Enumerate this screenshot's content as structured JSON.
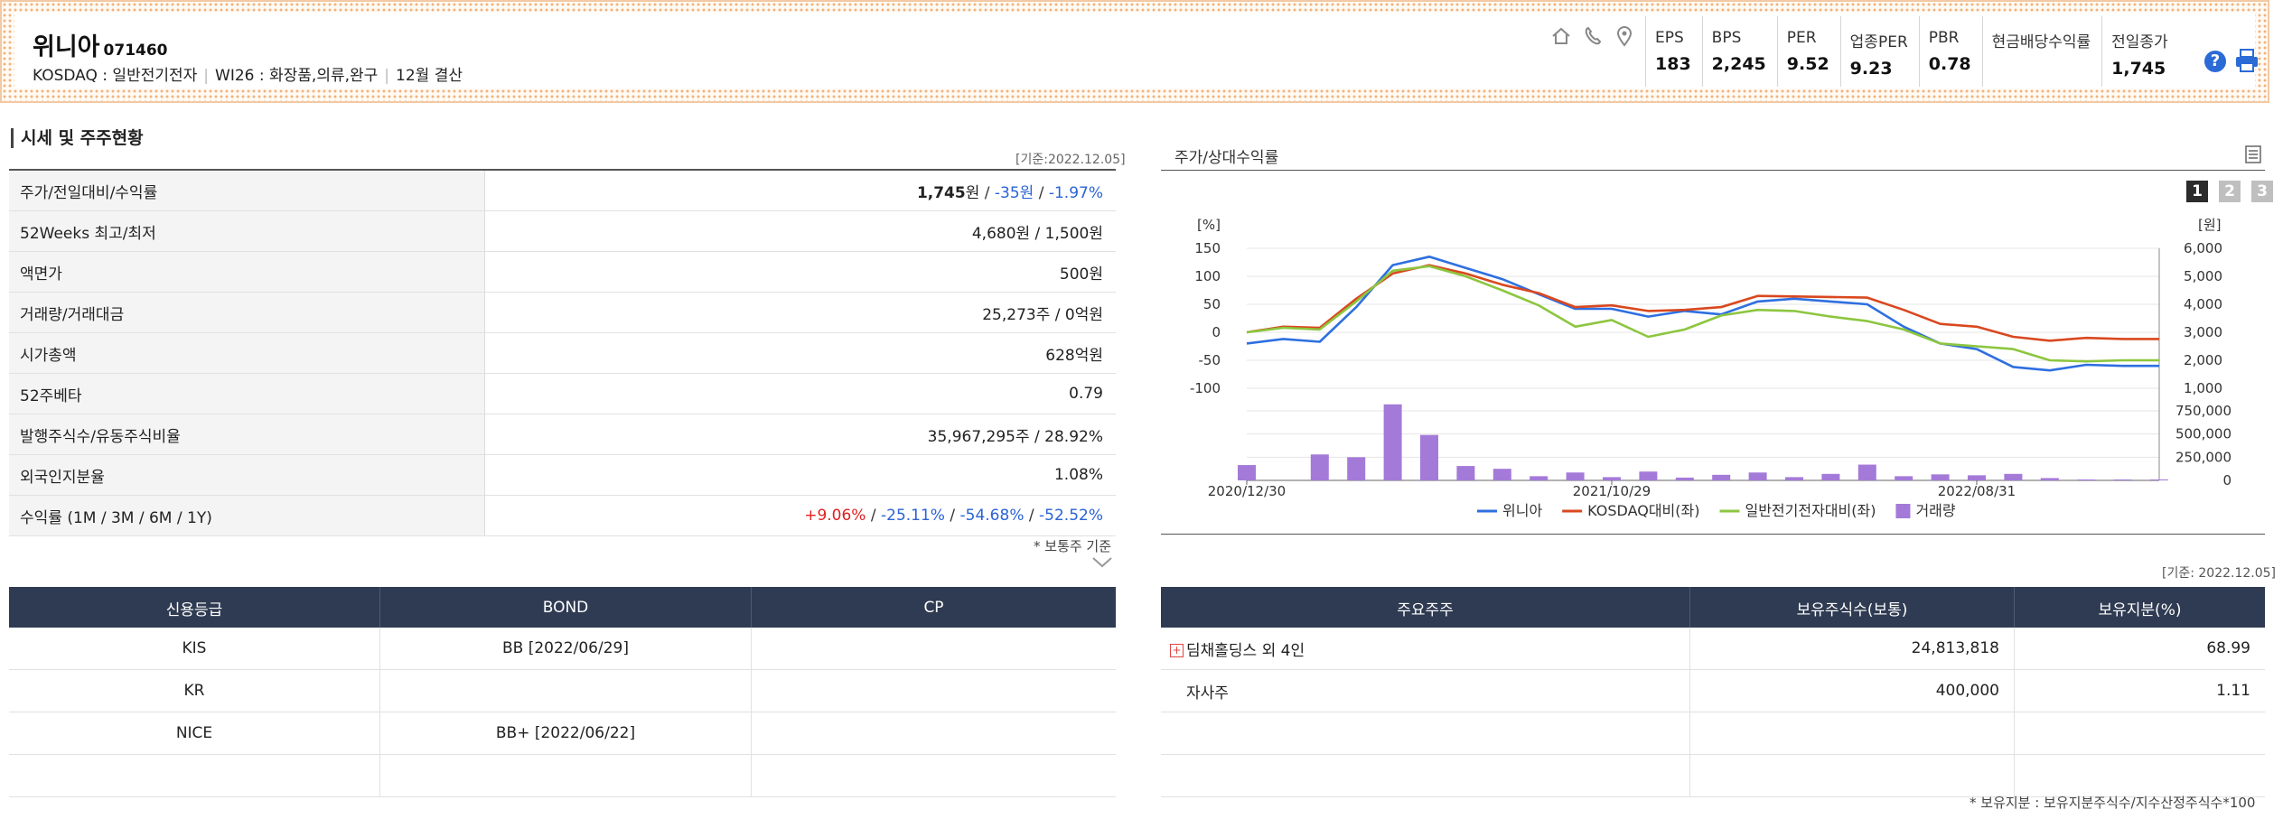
{
  "company": {
    "name": "위니아",
    "code": "071460",
    "market": "KOSDAQ : 일반전기전자",
    "wics": "WI26 : 화장품,의류,완구",
    "fiscal": "12월 결산"
  },
  "header_icons": [
    "home-icon",
    "phone-icon",
    "location-pin-icon"
  ],
  "metrics": [
    {
      "label": "EPS",
      "value": "183"
    },
    {
      "label": "BPS",
      "value": "2,245"
    },
    {
      "label": "PER",
      "value": "9.52"
    },
    {
      "label": "업종PER",
      "value": "9.23"
    },
    {
      "label": "PBR",
      "value": "0.78"
    },
    {
      "label": "현금배당수익률",
      "value": ""
    },
    {
      "label": "전일종가",
      "value": "1,745"
    }
  ],
  "market_info": {
    "title": "시세 및 주주현황",
    "asof": "[기준:2022.12.05]",
    "rows": [
      {
        "label": "주가/전일대비/수익률",
        "value": ""
      },
      {
        "label": "52Weeks 최고/최저",
        "value": "4,680원 / 1,500원"
      },
      {
        "label": "액면가",
        "value": "500원"
      },
      {
        "label": "거래량/거래대금",
        "value": "25,273주 / 0억원"
      },
      {
        "label": "시가총액",
        "value": "628억원"
      },
      {
        "label": "52주베타",
        "value": "0.79"
      },
      {
        "label": "발행주식수/유동주식비율",
        "value": "35,967,295주 / 28.92%"
      },
      {
        "label": "외국인지분율",
        "value": "1.08%"
      },
      {
        "label": "수익률 (1M / 3M / 6M / 1Y)",
        "value": ""
      }
    ],
    "price": {
      "close": "1,745",
      "unit": "원",
      "change": "-35원",
      "rate": "-1.97%"
    },
    "returns": [
      "+9.06%",
      "-25.11%",
      "-54.68%",
      "-52.52%"
    ],
    "note": "* 보통주 기준"
  },
  "credit": {
    "headers": [
      "신용등급",
      "BOND",
      "CP"
    ],
    "rows": [
      [
        "KIS",
        "BB  [2022/06/29]",
        ""
      ],
      [
        "KR",
        "",
        ""
      ],
      [
        "NICE",
        "BB+  [2022/06/22]",
        ""
      ],
      [
        "",
        "",
        ""
      ]
    ]
  },
  "chart_panel": {
    "title": "주가/상대수익률",
    "pages": [
      "1",
      "2",
      "3"
    ],
    "left_unit": "[%]",
    "right_unit": "[원]"
  },
  "chart_data": {
    "type": "line",
    "x_labels": [
      "2020/12/30",
      "2021/10/29",
      "2022/08/31"
    ],
    "x_label_positions": [
      0,
      10,
      20
    ],
    "points": 26,
    "left_axis": {
      "ticks": [
        150,
        100,
        50,
        0,
        -50,
        -100
      ],
      "range": [
        -100,
        150
      ]
    },
    "right_axis_price": {
      "ticks": [
        "6,000",
        "5,000",
        "4,000",
        "3,000",
        "2,000",
        "1,000"
      ],
      "range": [
        1000,
        6000
      ]
    },
    "right_axis_volume": {
      "ticks": [
        "750,000",
        "500,000",
        "250,000",
        "0"
      ],
      "range": [
        0,
        750000
      ]
    },
    "series": [
      {
        "name": "위니아",
        "color": "#2e6fe0",
        "axis": "left",
        "values": [
          -20,
          -12,
          -17,
          45,
          120,
          135,
          115,
          95,
          68,
          42,
          42,
          28,
          38,
          32,
          55,
          60,
          55,
          50,
          10,
          -20,
          -30,
          -62,
          -68,
          -58,
          -60,
          -60
        ]
      },
      {
        "name": "KOSDAQ대비(좌)",
        "color": "#d9481f",
        "axis": "left",
        "values": [
          0,
          10,
          8,
          60,
          105,
          120,
          105,
          85,
          70,
          45,
          48,
          38,
          40,
          45,
          65,
          64,
          63,
          62,
          40,
          15,
          10,
          -8,
          -15,
          -10,
          -12,
          -12
        ]
      },
      {
        "name": "일반전기전자대비(좌)",
        "color": "#8cc63f",
        "axis": "left",
        "values": [
          0,
          8,
          5,
          55,
          110,
          118,
          100,
          75,
          48,
          10,
          22,
          -8,
          5,
          30,
          40,
          38,
          28,
          20,
          5,
          -20,
          -25,
          -30,
          -50,
          -52,
          -50,
          -50
        ]
      },
      {
        "name": "거래량",
        "color": "#a47ad9",
        "axis": "right_volume",
        "type": "bar",
        "values": [
          165000,
          0,
          280000,
          250000,
          820000,
          490000,
          155000,
          125000,
          45000,
          85000,
          35000,
          95000,
          30000,
          60000,
          85000,
          35000,
          70000,
          170000,
          45000,
          65000,
          55000,
          70000,
          25000,
          10000,
          10000,
          10000
        ]
      }
    ]
  },
  "holders": {
    "asof": "[기준: 2022.12.05]",
    "headers": [
      "주요주주",
      "보유주식수(보통)",
      "보유지분(%)"
    ],
    "rows": [
      {
        "name": "딤채홀딩스 외 4인",
        "shares": "24,813,818",
        "pct": "68.99",
        "expand": true
      },
      {
        "name": "자사주",
        "shares": "400,000",
        "pct": "1.11",
        "expand": false
      },
      {
        "name": "",
        "shares": "",
        "pct": "",
        "expand": false
      },
      {
        "name": "",
        "shares": "",
        "pct": "",
        "expand": false
      }
    ],
    "note": "* 보유지분 : 보유지분주식수/지수산정주식수*100"
  }
}
